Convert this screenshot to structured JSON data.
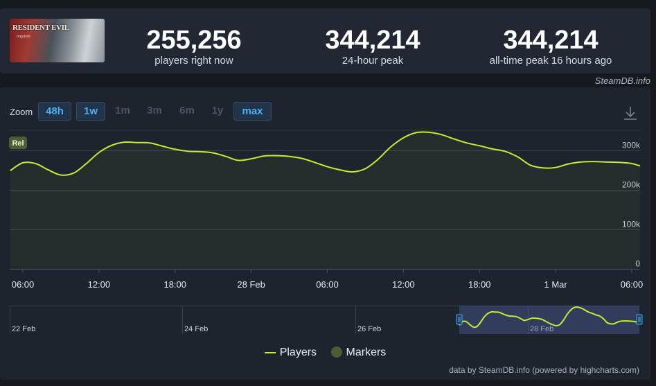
{
  "game": {
    "logo_text": "RESIDENT EVIL",
    "logo_subtitle": "requiem"
  },
  "stats": [
    {
      "value": "255,256",
      "label": "players right now"
    },
    {
      "value": "344,214",
      "label": "24-hour peak"
    },
    {
      "value": "344,214",
      "label": "all-time peak 16 hours ago"
    }
  ],
  "credit_top": "SteamDB.info",
  "zoom": {
    "label": "Zoom",
    "options": [
      {
        "label": "48h",
        "active": true
      },
      {
        "label": "1w",
        "active": true
      },
      {
        "label": "1m",
        "active": false
      },
      {
        "label": "3m",
        "active": false
      },
      {
        "label": "6m",
        "active": false
      },
      {
        "label": "1y",
        "active": false
      },
      {
        "label": "max",
        "active": true
      }
    ]
  },
  "download_icon": "download-icon",
  "colors": {
    "series": "#c5ee2e",
    "marker": "#4d5e32",
    "grid": "#3a414d",
    "accent": "#4ab0f2"
  },
  "chart_data": {
    "type": "line",
    "y_unit": "players",
    "ylim": [
      0,
      350000
    ],
    "y_ticks": [
      0,
      100000,
      200000,
      300000
    ],
    "y_tick_labels": [
      "0",
      "100k",
      "200k",
      "300k"
    ],
    "x_ticks": [
      {
        "label": "06:00",
        "hour": 0
      },
      {
        "label": "12:00",
        "hour": 6
      },
      {
        "label": "18:00",
        "hour": 12
      },
      {
        "label": "28 Feb",
        "hour": 18
      },
      {
        "label": "06:00",
        "hour": 24
      },
      {
        "label": "12:00",
        "hour": 30
      },
      {
        "label": "18:00",
        "hour": 36
      },
      {
        "label": "1 Mar",
        "hour": 42
      },
      {
        "label": "06:00",
        "hour": 48
      }
    ],
    "x_range_hours": [
      -1,
      49
    ],
    "series": [
      {
        "name": "Players",
        "x_hours": [
          -1,
          0,
          1,
          2,
          3,
          4,
          5,
          6,
          7,
          8,
          9,
          10,
          11,
          12,
          13,
          14,
          15,
          16,
          17,
          18,
          19,
          20,
          21,
          22,
          23,
          24,
          25,
          26,
          27,
          28,
          29,
          30,
          31,
          32,
          33,
          34,
          35,
          36,
          37,
          38,
          39,
          40,
          41,
          42,
          43,
          44,
          45,
          46,
          47,
          48,
          49
        ],
        "values": [
          248000,
          268000,
          266000,
          250000,
          237000,
          242000,
          266000,
          294000,
          312000,
          320000,
          319000,
          318000,
          310000,
          302000,
          297000,
          296000,
          293000,
          284000,
          274000,
          278000,
          285000,
          286000,
          284000,
          279000,
          269000,
          258000,
          250000,
          245000,
          253000,
          277000,
          308000,
          331000,
          344000,
          345000,
          339000,
          328000,
          318000,
          311000,
          303000,
          297000,
          283000,
          262000,
          255000,
          256000,
          265000,
          270000,
          271000,
          270000,
          269000,
          266000,
          260000
        ]
      }
    ],
    "markers": [
      {
        "label": "Rel",
        "hour": -0.5,
        "value": 271000
      }
    ],
    "legend": [
      "Players",
      "Markers"
    ],
    "navigator": {
      "labels": [
        "22 Feb",
        "24 Feb",
        "26 Feb",
        "28 Feb"
      ],
      "selected_range": [
        "27 Feb",
        "1 Mar"
      ]
    }
  },
  "credit_bottom": "data by SteamDB.info (powered by highcharts.com)"
}
